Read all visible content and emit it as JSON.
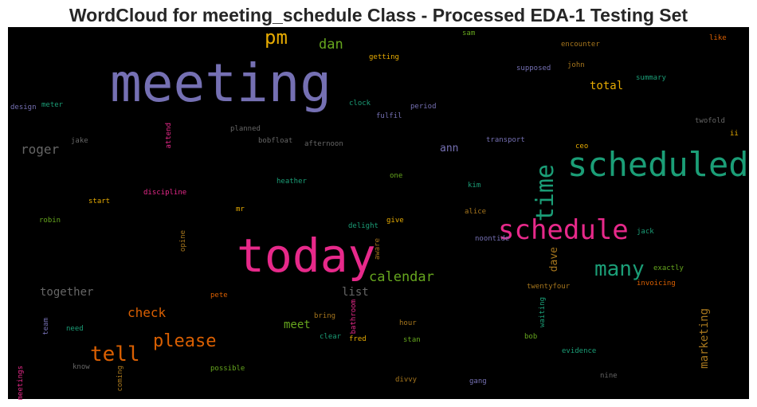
{
  "chart_data": {
    "type": "wordcloud",
    "title": "WordCloud for meeting_schedule Class - Processed EDA-1 Testing Set",
    "background": "#000000",
    "words": [
      {
        "text": "meeting",
        "color": "#7570b3"
      },
      {
        "text": "today",
        "color": "#e7298a"
      },
      {
        "text": "scheduled",
        "color": "#1b9e77"
      },
      {
        "text": "schedule",
        "color": "#e7298a"
      },
      {
        "text": "time",
        "color": "#1b9e77"
      },
      {
        "text": "pm",
        "color": "#e6ab02"
      },
      {
        "text": "many",
        "color": "#1b9e77"
      },
      {
        "text": "tell",
        "color": "#d95f02"
      },
      {
        "text": "please",
        "color": "#d95f02"
      },
      {
        "text": "calendar",
        "color": "#66a61e"
      },
      {
        "text": "roger",
        "color": "#666666"
      },
      {
        "text": "dan",
        "color": "#66a61e"
      },
      {
        "text": "check",
        "color": "#d95f02"
      },
      {
        "text": "together",
        "color": "#666666"
      },
      {
        "text": "total",
        "color": "#e6ab02"
      },
      {
        "text": "list",
        "color": "#666666"
      },
      {
        "text": "meet",
        "color": "#66a61e"
      },
      {
        "text": "ann",
        "color": "#7570b3"
      },
      {
        "text": "dave",
        "color": "#a6761d"
      },
      {
        "text": "marketing",
        "color": "#a6761d"
      },
      {
        "text": "getting",
        "color": "#e6ab02"
      },
      {
        "text": "sam",
        "color": "#66a61e"
      },
      {
        "text": "encounter",
        "color": "#a6761d"
      },
      {
        "text": "like",
        "color": "#d95f02"
      },
      {
        "text": "supposed",
        "color": "#7570b3"
      },
      {
        "text": "john",
        "color": "#a6761d"
      },
      {
        "text": "summary",
        "color": "#1b9e77"
      },
      {
        "text": "design",
        "color": "#7570b3"
      },
      {
        "text": "meter",
        "color": "#1b9e77"
      },
      {
        "text": "clock",
        "color": "#1b9e77"
      },
      {
        "text": "period",
        "color": "#7570b3"
      },
      {
        "text": "fulfil",
        "color": "#7570b3"
      },
      {
        "text": "twofold",
        "color": "#666666"
      },
      {
        "text": "planned",
        "color": "#666666"
      },
      {
        "text": "attend",
        "color": "#e7298a"
      },
      {
        "text": "jake",
        "color": "#666666"
      },
      {
        "text": "bobfloat",
        "color": "#666666"
      },
      {
        "text": "afternoon",
        "color": "#666666"
      },
      {
        "text": "transport",
        "color": "#7570b3"
      },
      {
        "text": "ii",
        "color": "#e6ab02"
      },
      {
        "text": "ceo",
        "color": "#e6ab02"
      },
      {
        "text": "one",
        "color": "#66a61e"
      },
      {
        "text": "heather",
        "color": "#1b9e77"
      },
      {
        "text": "kim",
        "color": "#1b9e77"
      },
      {
        "text": "discipline",
        "color": "#e7298a"
      },
      {
        "text": "start",
        "color": "#e6ab02"
      },
      {
        "text": "mr",
        "color": "#e6ab02"
      },
      {
        "text": "alice",
        "color": "#a6761d"
      },
      {
        "text": "robin",
        "color": "#66a61e"
      },
      {
        "text": "give",
        "color": "#e6ab02"
      },
      {
        "text": "delight",
        "color": "#1b9e77"
      },
      {
        "text": "jack",
        "color": "#1b9e77"
      },
      {
        "text": "opine",
        "color": "#a6761d"
      },
      {
        "text": "aware",
        "color": "#a6761d"
      },
      {
        "text": "noontide",
        "color": "#7570b3"
      },
      {
        "text": "exactly",
        "color": "#66a61e"
      },
      {
        "text": "invoicing",
        "color": "#d95f02"
      },
      {
        "text": "twentyfour",
        "color": "#a6761d"
      },
      {
        "text": "pete",
        "color": "#d95f02"
      },
      {
        "text": "bring",
        "color": "#a6761d"
      },
      {
        "text": "bathroom",
        "color": "#e7298a"
      },
      {
        "text": "waiting",
        "color": "#1b9e77"
      },
      {
        "text": "team",
        "color": "#7570b3"
      },
      {
        "text": "need",
        "color": "#1b9e77"
      },
      {
        "text": "clear",
        "color": "#1b9e77"
      },
      {
        "text": "fred",
        "color": "#e6ab02"
      },
      {
        "text": "hour",
        "color": "#a6761d"
      },
      {
        "text": "stan",
        "color": "#66a61e"
      },
      {
        "text": "bob",
        "color": "#66a61e"
      },
      {
        "text": "evidence",
        "color": "#1b9e77"
      },
      {
        "text": "know",
        "color": "#666666"
      },
      {
        "text": "possible",
        "color": "#66a61e"
      },
      {
        "text": "nine",
        "color": "#666666"
      },
      {
        "text": "meetings",
        "color": "#e7298a"
      },
      {
        "text": "coming",
        "color": "#a6761d"
      },
      {
        "text": "divvy",
        "color": "#a6761d"
      },
      {
        "text": "gang",
        "color": "#7570b3"
      }
    ]
  }
}
